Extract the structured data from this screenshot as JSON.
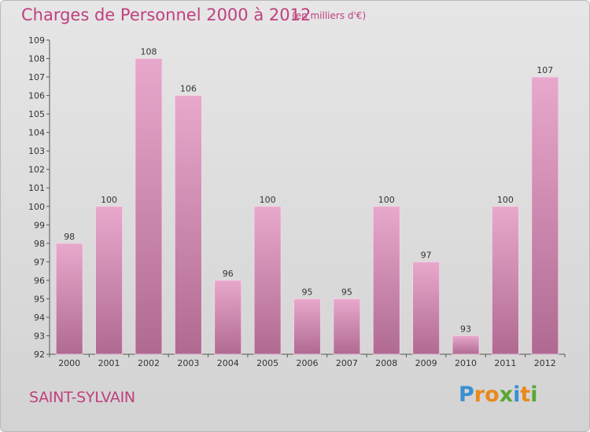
{
  "title": "Charges de Personnel 2000 à 2012",
  "subtitle": "(en milliers d'€)",
  "city": "SAINT-SYLVAIN",
  "logo": {
    "letters": [
      "P",
      "r",
      "o",
      "x",
      "i",
      "t",
      "i"
    ],
    "colors": [
      "#3a8fd0",
      "#e8891b",
      "#e8891b",
      "#5aa632",
      "#3a8fd0",
      "#e8891b",
      "#5aa632"
    ]
  },
  "colors": {
    "bar_light": "#e8a8cc",
    "bar_dark": "#b06a92",
    "axis": "#555555",
    "title": "#c0407f"
  },
  "chart_data": {
    "type": "bar",
    "title": "Charges de Personnel 2000 à 2012",
    "subtitle": "(en milliers d'€)",
    "categories": [
      "2000",
      "2001",
      "2002",
      "2003",
      "2004",
      "2005",
      "2006",
      "2007",
      "2008",
      "2009",
      "2010",
      "2011",
      "2012"
    ],
    "values": [
      98,
      100,
      108,
      106,
      96,
      100,
      95,
      95,
      100,
      97,
      93,
      100,
      107
    ],
    "ylim": [
      92,
      109
    ],
    "yticks": [
      92,
      93,
      94,
      95,
      96,
      97,
      98,
      99,
      100,
      101,
      102,
      103,
      104,
      105,
      106,
      107,
      108,
      109
    ],
    "grid": false
  }
}
